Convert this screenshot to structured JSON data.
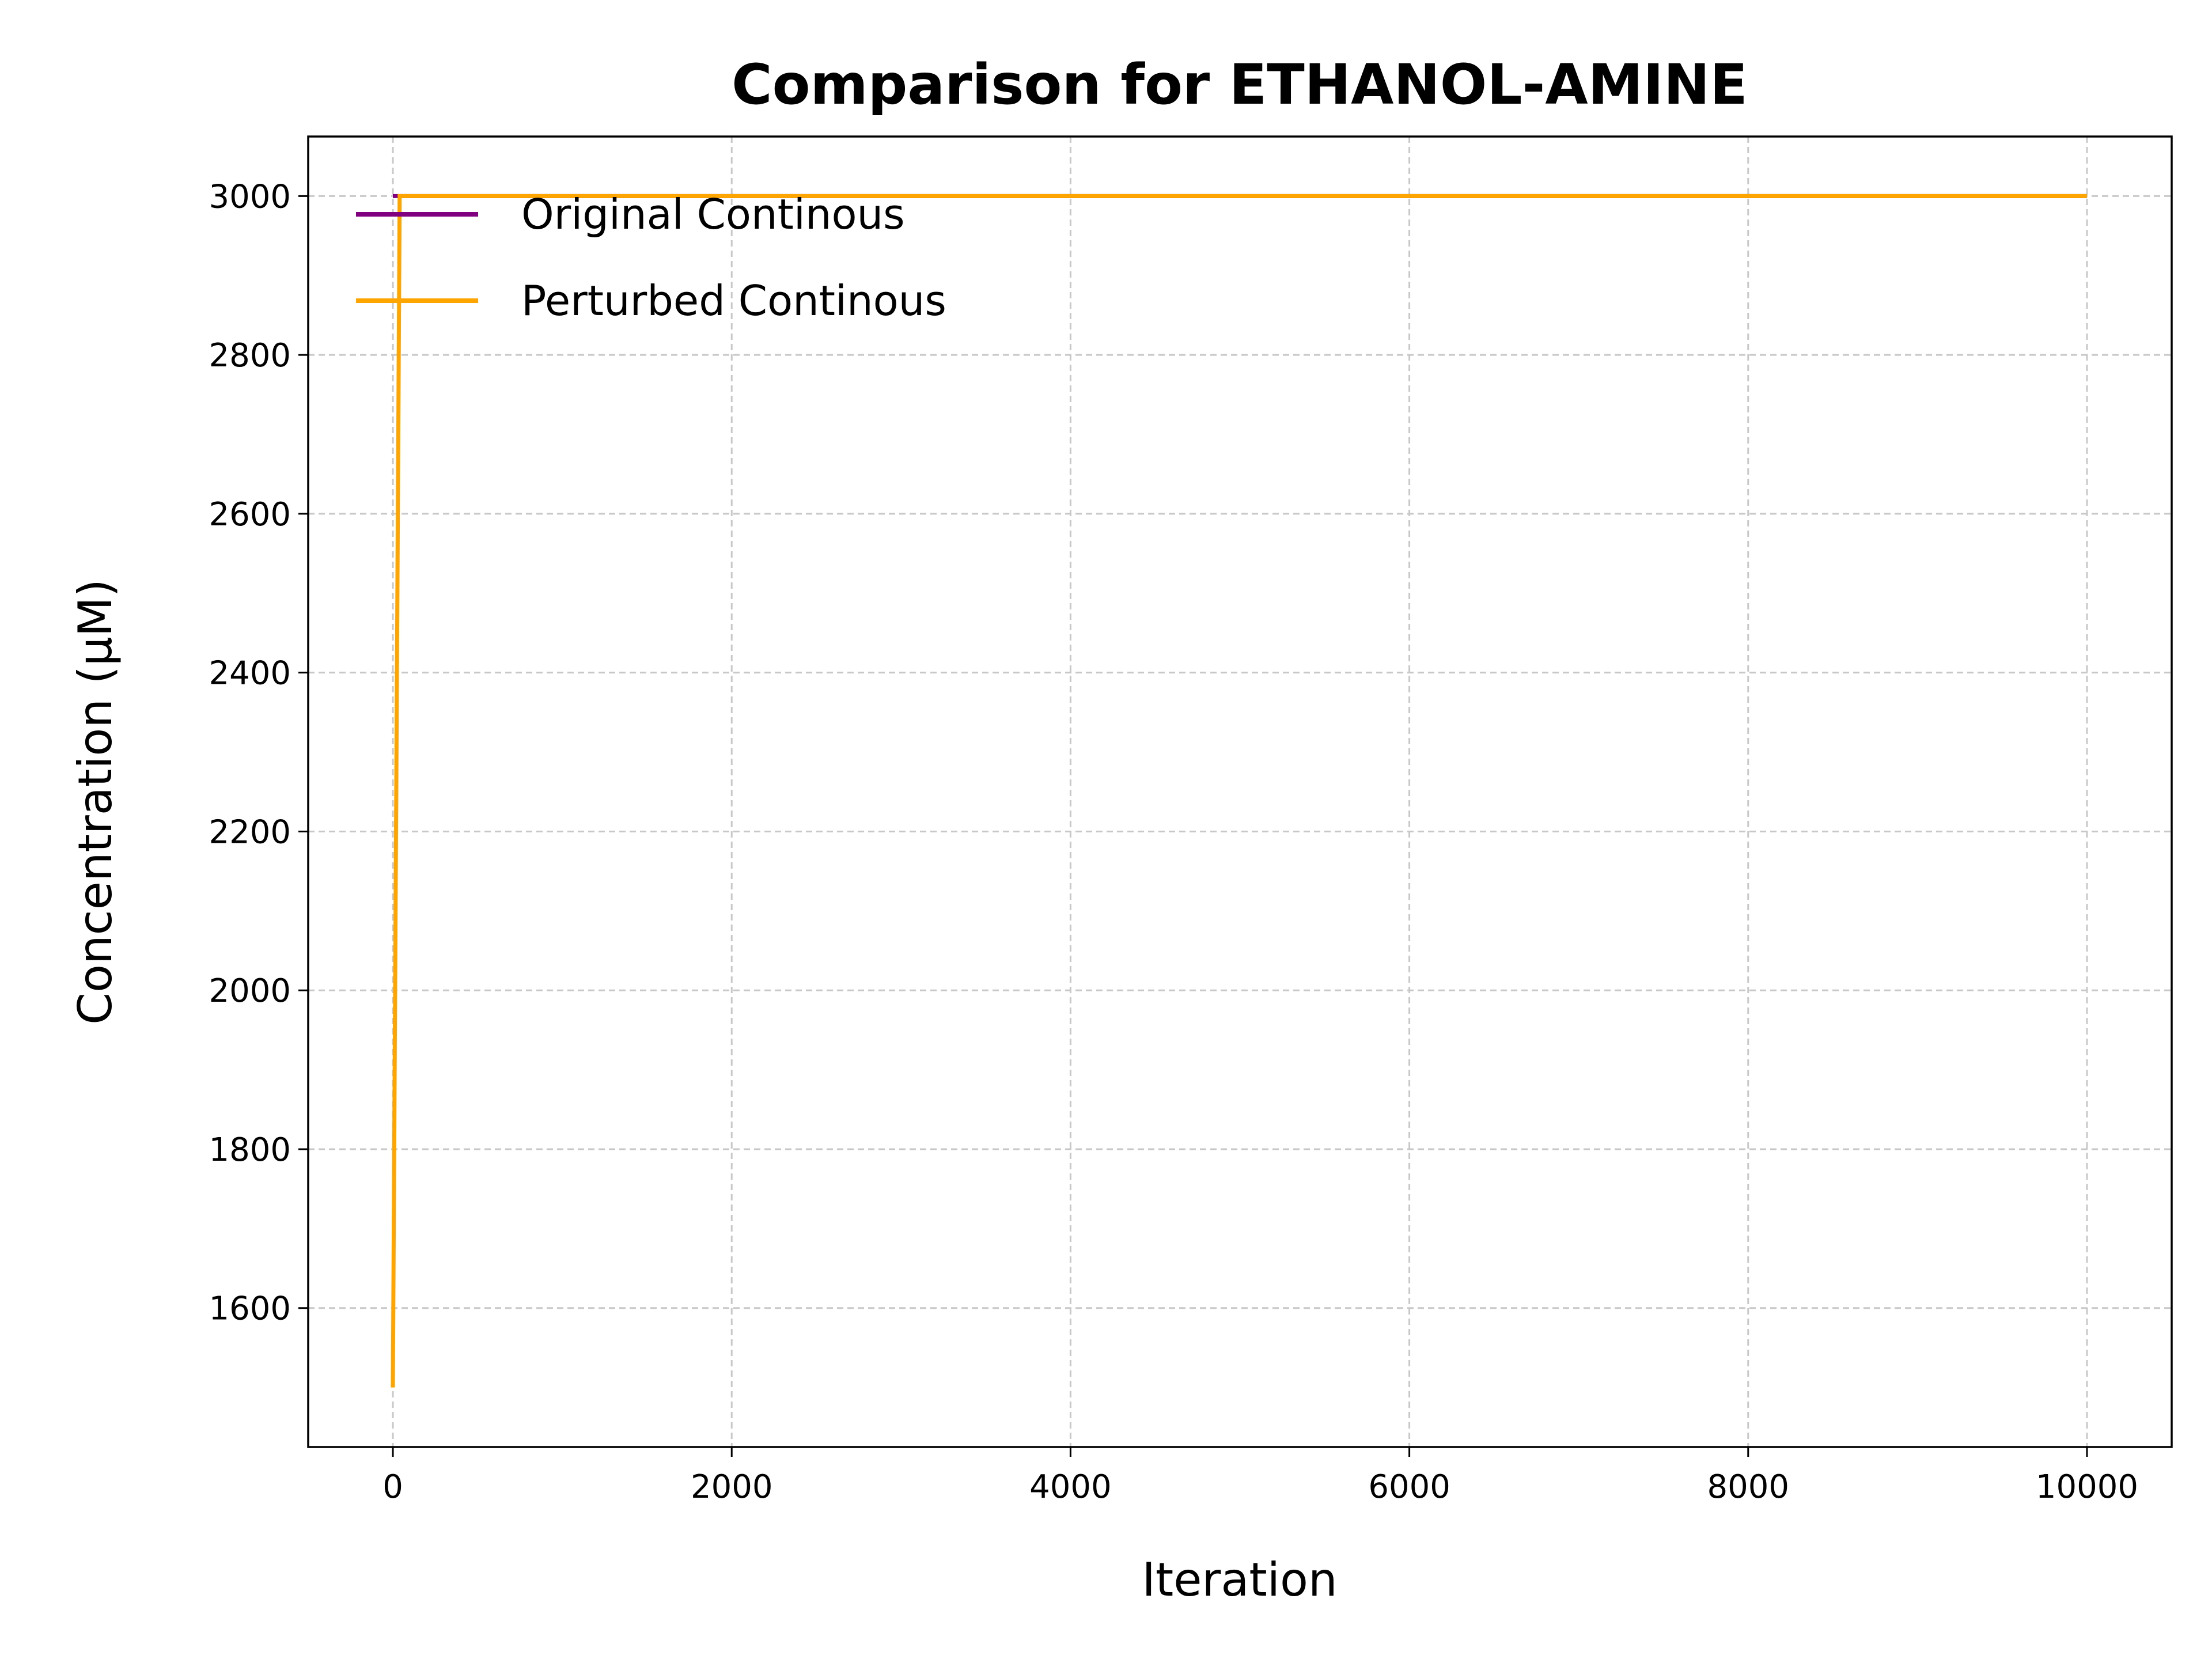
{
  "chart_data": {
    "type": "line",
    "title": "Comparison for ETHANOL-AMINE",
    "xlabel": "Iteration",
    "ylabel": "Concentration (μM)",
    "xlim": [
      -500,
      10500
    ],
    "ylim": [
      1425,
      3075
    ],
    "xticks": [
      0,
      2000,
      4000,
      6000,
      8000,
      10000
    ],
    "yticks": [
      1600,
      1800,
      2000,
      2200,
      2400,
      2600,
      2800,
      3000
    ],
    "grid": true,
    "legend_position": "upper-left",
    "series": [
      {
        "name": "Original Continous",
        "color": "#800080",
        "x": [
          0,
          40,
          10000
        ],
        "y": [
          3000,
          3000,
          3000
        ]
      },
      {
        "name": "Perturbed Continous",
        "color": "#ffa500",
        "x": [
          0,
          40,
          10000
        ],
        "y": [
          1500,
          3000,
          3000
        ]
      }
    ]
  }
}
